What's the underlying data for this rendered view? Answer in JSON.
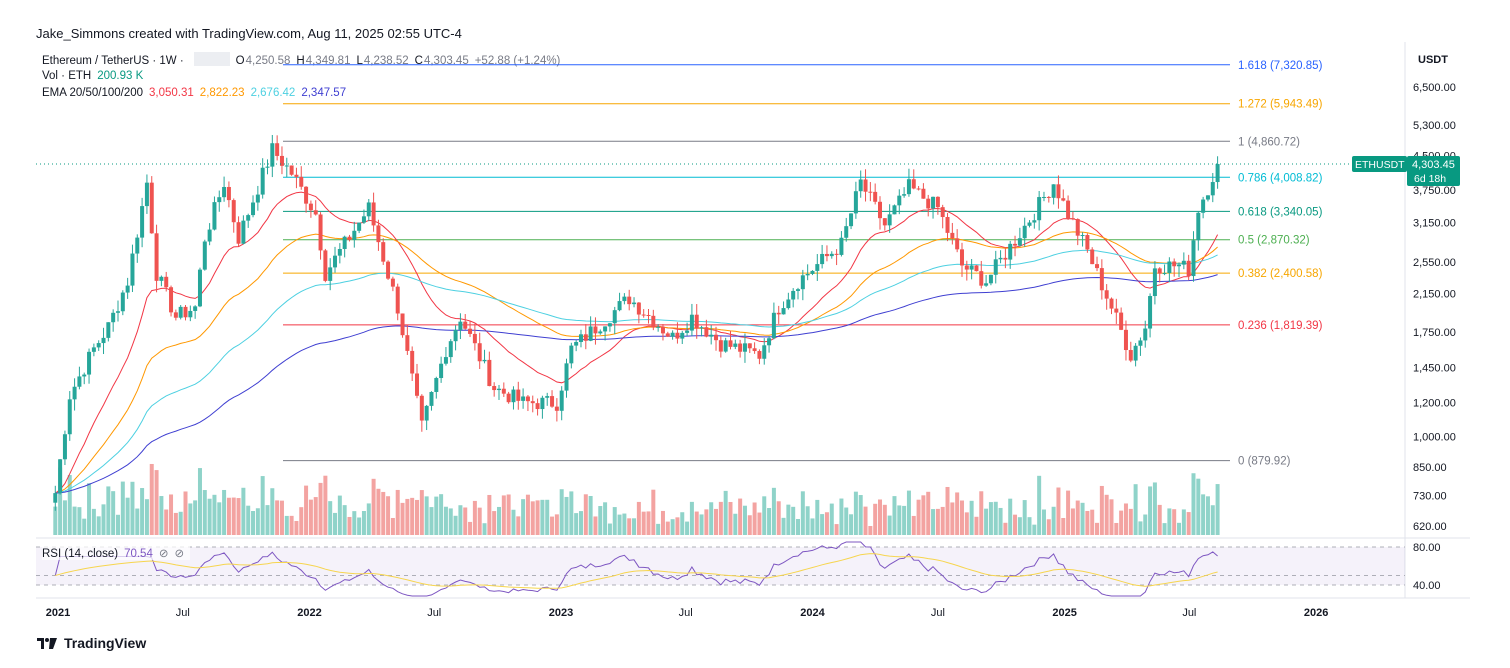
{
  "header": {
    "credit": "Jake_Simmons created with TradingView.com, Aug 11, 2025 02:55 UTC-4"
  },
  "legend": {
    "symbol": "Ethereum / TetherUS · 1W ·",
    "ohlc": {
      "o_label": "O",
      "o": "4,250.58",
      "h_label": "H",
      "h": "4,349.81",
      "l_label": "L",
      "l": "4,238.52",
      "c_label": "C",
      "c": "4,303.45",
      "change": "+52.88 (+1.24%)"
    },
    "vol_label": "Vol · ETH",
    "vol_value": "200.93 K",
    "ema_label": "EMA 20/50/100/200",
    "ema_values": [
      "3,050.31",
      "2,822.23",
      "2,676.42",
      "2,347.57"
    ],
    "rsi_label": "RSI (14, close)",
    "rsi_value": "70.54"
  },
  "colors": {
    "up": "#26a69a",
    "down": "#ef5350",
    "vol_up": "#8fd3c9",
    "vol_down": "#f3a3a1",
    "ema20": "#f23645",
    "ema50": "#ff9800",
    "ema100": "#4dd0e1",
    "ema200": "#3f3fd1",
    "rsi": "#7e57c2",
    "rsi_ma": "#f6d54e",
    "price_badge": "#089981"
  },
  "chart_data": {
    "type": "candlestick",
    "symbol": "ETHUSDT",
    "interval": "1W",
    "y_scale": "log",
    "currency": "USDT",
    "y_ticks": [
      "6,500.00",
      "5,300.00",
      "4,500.00",
      "3,750.00",
      "3,150.00",
      "2,550.00",
      "2,150.00",
      "1,750.00",
      "1,450.00",
      "1,200.00",
      "1,000.00",
      "850.00",
      "730.00",
      "620.00"
    ],
    "x_ticks": [
      "2021",
      "Jul",
      "2022",
      "Jul",
      "2023",
      "Jul",
      "2024",
      "Jul",
      "2025",
      "Jul",
      "2026"
    ],
    "fib_levels": [
      {
        "ratio": "1.618",
        "price": 7320.85,
        "label": "1.618 (7,320.85)",
        "color": "#2962ff"
      },
      {
        "ratio": "1.272",
        "price": 5943.49,
        "label": "1.272 (5,943.49)",
        "color": "#f7a600"
      },
      {
        "ratio": "1",
        "price": 4860.72,
        "label": "1 (4,860.72)",
        "color": "#787b86"
      },
      {
        "ratio": "0.786",
        "price": 4008.82,
        "label": "0.786 (4,008.82)",
        "color": "#00bcd4"
      },
      {
        "ratio": "0.618",
        "price": 3340.05,
        "label": "0.618 (3,340.05)",
        "color": "#089981"
      },
      {
        "ratio": "0.5",
        "price": 2870.32,
        "label": "0.5 (2,870.32)",
        "color": "#4caf50"
      },
      {
        "ratio": "0.382",
        "price": 2400.58,
        "label": "0.382 (2,400.58)",
        "color": "#f7a600"
      },
      {
        "ratio": "0.236",
        "price": 1819.39,
        "label": "0.236 (1,819.39)",
        "color": "#f23645"
      },
      {
        "ratio": "0",
        "price": 879.92,
        "label": "0 (879.92)",
        "color": "#787b86"
      }
    ],
    "price_tag": {
      "symbol": "ETHUSDT",
      "price": "4,303.45",
      "countdown": "6d 18h"
    },
    "rsi_ticks": [
      "80.00",
      "40.00"
    ],
    "candle_anchors": [
      [
        "2020-12-28",
        740
      ],
      [
        "2021-01-18",
        1250
      ],
      [
        "2021-02-22",
        1600
      ],
      [
        "2021-03-15",
        1800
      ],
      [
        "2021-04-12",
        2300
      ],
      [
        "2021-05-10",
        3900
      ],
      [
        "2021-05-24",
        2400
      ],
      [
        "2021-06-21",
        1900
      ],
      [
        "2021-07-19",
        2000
      ],
      [
        "2021-08-02",
        2900
      ],
      [
        "2021-08-30",
        3900
      ],
      [
        "2021-09-20",
        2900
      ],
      [
        "2021-11-08",
        4650
      ],
      [
        "2021-12-06",
        4100
      ],
      [
        "2022-01-10",
        3300
      ],
      [
        "2022-01-24",
        2400
      ],
      [
        "2022-03-28",
        3400
      ],
      [
        "2022-05-09",
        2000
      ],
      [
        "2022-06-13",
        1050
      ],
      [
        "2022-07-18",
        1600
      ],
      [
        "2022-08-08",
        1900
      ],
      [
        "2022-09-26",
        1300
      ],
      [
        "2022-11-07",
        1200
      ],
      [
        "2022-12-26",
        1200
      ],
      [
        "2023-01-16",
        1600
      ],
      [
        "2023-04-10",
        2100
      ],
      [
        "2023-06-12",
        1700
      ],
      [
        "2023-07-10",
        1900
      ],
      [
        "2023-08-21",
        1650
      ],
      [
        "2023-10-16",
        1550
      ],
      [
        "2023-11-13",
        2000
      ],
      [
        "2023-12-11",
        2300
      ],
      [
        "2024-02-12",
        2800
      ],
      [
        "2024-03-11",
        3900
      ],
      [
        "2024-04-15",
        3100
      ],
      [
        "2024-05-20",
        3800
      ],
      [
        "2024-07-01",
        3400
      ],
      [
        "2024-08-05",
        2500
      ],
      [
        "2024-09-09",
        2300
      ],
      [
        "2024-11-11",
        3200
      ],
      [
        "2024-12-16",
        3900
      ],
      [
        "2025-01-06",
        3300
      ],
      [
        "2025-02-03",
        2700
      ],
      [
        "2025-03-10",
        2000
      ],
      [
        "2025-04-07",
        1550
      ],
      [
        "2025-04-28",
        1800
      ],
      [
        "2025-05-12",
        2500
      ],
      [
        "2025-06-16",
        2500
      ],
      [
        "2025-06-30",
        2450
      ],
      [
        "2025-07-14",
        3400
      ],
      [
        "2025-07-28",
        3800
      ],
      [
        "2025-08-11",
        4303.45
      ]
    ],
    "ema_last": {
      "ema20": 3050.31,
      "ema50": 2822.23,
      "ema100": 2676.42,
      "ema200": 2347.57
    },
    "rsi_last": 70.54
  },
  "footer": {
    "brand": "TradingView"
  }
}
